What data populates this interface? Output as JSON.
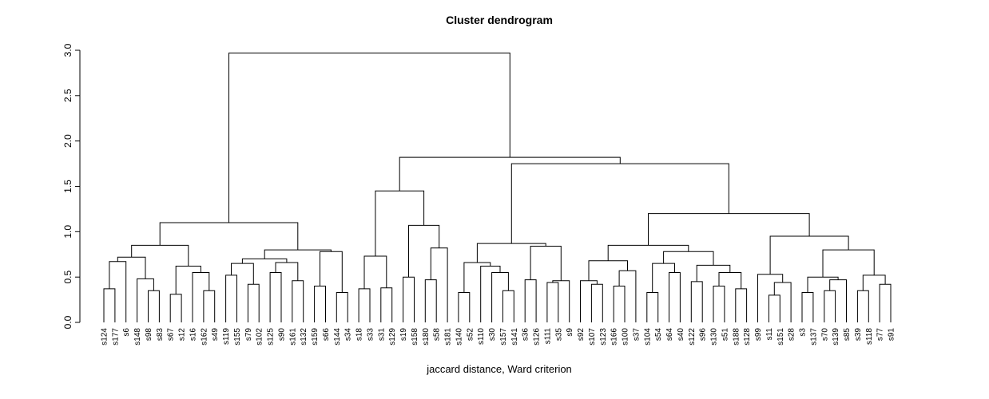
{
  "page": {
    "background": "#FFFFFF"
  },
  "chart_data": {
    "type": "dendrogram",
    "title": "Cluster dendrogram",
    "xlabel": "jaccard distance, Ward criterion",
    "ylabel": "",
    "ylim": [
      0,
      3
    ],
    "yticks": [
      0.0,
      0.5,
      1.0,
      1.5,
      2.0,
      2.5,
      3.0
    ],
    "grid": false,
    "line_color": "#000000",
    "leaf_colors": {
      "red": "#FF0000",
      "cyan": "#00FFFF"
    },
    "leaves": [
      {
        "label": "s124",
        "group": "cyan"
      },
      {
        "label": "s177",
        "group": "cyan"
      },
      {
        "label": "s6",
        "group": "red"
      },
      {
        "label": "s148",
        "group": "cyan"
      },
      {
        "label": "s98",
        "group": "red"
      },
      {
        "label": "s83",
        "group": "red"
      },
      {
        "label": "s67",
        "group": "cyan"
      },
      {
        "label": "s12",
        "group": "red"
      },
      {
        "label": "s16",
        "group": "red"
      },
      {
        "label": "s162",
        "group": "red"
      },
      {
        "label": "s49",
        "group": "red"
      },
      {
        "label": "s119",
        "group": "cyan"
      },
      {
        "label": "s155",
        "group": "red"
      },
      {
        "label": "s79",
        "group": "red"
      },
      {
        "label": "s102",
        "group": "red"
      },
      {
        "label": "s125",
        "group": "cyan"
      },
      {
        "label": "s90",
        "group": "red"
      },
      {
        "label": "s161",
        "group": "red"
      },
      {
        "label": "s132",
        "group": "red"
      },
      {
        "label": "s159",
        "group": "cyan"
      },
      {
        "label": "s66",
        "group": "cyan"
      },
      {
        "label": "s144",
        "group": "red"
      },
      {
        "label": "s34",
        "group": "red"
      },
      {
        "label": "s18",
        "group": "cyan"
      },
      {
        "label": "s33",
        "group": "red"
      },
      {
        "label": "s31",
        "group": "red"
      },
      {
        "label": "s129",
        "group": "cyan"
      },
      {
        "label": "s19",
        "group": "cyan"
      },
      {
        "label": "s158",
        "group": "cyan"
      },
      {
        "label": "s180",
        "group": "cyan"
      },
      {
        "label": "s58",
        "group": "red"
      },
      {
        "label": "s181",
        "group": "cyan"
      },
      {
        "label": "s140",
        "group": "cyan"
      },
      {
        "label": "s52",
        "group": "cyan"
      },
      {
        "label": "s110",
        "group": "cyan"
      },
      {
        "label": "s30",
        "group": "cyan"
      },
      {
        "label": "s157",
        "group": "cyan"
      },
      {
        "label": "s141",
        "group": "cyan"
      },
      {
        "label": "s36",
        "group": "cyan"
      },
      {
        "label": "s126",
        "group": "cyan"
      },
      {
        "label": "s111",
        "group": "red"
      },
      {
        "label": "s35",
        "group": "cyan"
      },
      {
        "label": "s9",
        "group": "cyan"
      },
      {
        "label": "s92",
        "group": "red"
      },
      {
        "label": "s107",
        "group": "cyan"
      },
      {
        "label": "s123",
        "group": "red"
      },
      {
        "label": "s166",
        "group": "red"
      },
      {
        "label": "s100",
        "group": "red"
      },
      {
        "label": "s37",
        "group": "red"
      },
      {
        "label": "s104",
        "group": "cyan"
      },
      {
        "label": "s54",
        "group": "cyan"
      },
      {
        "label": "s64",
        "group": "cyan"
      },
      {
        "label": "s40",
        "group": "red"
      },
      {
        "label": "s122",
        "group": "cyan"
      },
      {
        "label": "s96",
        "group": "red"
      },
      {
        "label": "s130",
        "group": "cyan"
      },
      {
        "label": "s51",
        "group": "red"
      },
      {
        "label": "s188",
        "group": "red"
      },
      {
        "label": "s128",
        "group": "cyan"
      },
      {
        "label": "s99",
        "group": "red"
      },
      {
        "label": "s11",
        "group": "red"
      },
      {
        "label": "s151",
        "group": "red"
      },
      {
        "label": "s28",
        "group": "red"
      },
      {
        "label": "s3",
        "group": "cyan"
      },
      {
        "label": "s137",
        "group": "cyan"
      },
      {
        "label": "s70",
        "group": "cyan"
      },
      {
        "label": "s139",
        "group": "cyan"
      },
      {
        "label": "s85",
        "group": "cyan"
      },
      {
        "label": "s39",
        "group": "red"
      },
      {
        "label": "s118",
        "group": "cyan"
      },
      {
        "label": "s77",
        "group": "cyan"
      },
      {
        "label": "s91",
        "group": "cyan"
      }
    ],
    "tree": {
      "h": 2.97,
      "c": [
        {
          "h": 1.1,
          "c": [
            {
              "h": 0.85,
              "c": [
                {
                  "h": 0.72,
                  "c": [
                    {
                      "h": 0.67,
                      "c": [
                        {
                          "h": 0.37,
                          "c": [
                            0,
                            1
                          ]
                        },
                        2
                      ]
                    },
                    {
                      "h": 0.48,
                      "c": [
                        3,
                        {
                          "h": 0.35,
                          "c": [
                            4,
                            5
                          ]
                        }
                      ]
                    }
                  ]
                },
                {
                  "h": 0.62,
                  "c": [
                    {
                      "h": 0.31,
                      "c": [
                        6,
                        7
                      ]
                    },
                    {
                      "h": 0.55,
                      "c": [
                        8,
                        {
                          "h": 0.35,
                          "c": [
                            9,
                            10
                          ]
                        }
                      ]
                    }
                  ]
                }
              ]
            },
            {
              "h": 0.8,
              "c": [
                {
                  "h": 0.7,
                  "c": [
                    {
                      "h": 0.65,
                      "c": [
                        {
                          "h": 0.52,
                          "c": [
                            11,
                            12
                          ]
                        },
                        {
                          "h": 0.42,
                          "c": [
                            13,
                            14
                          ]
                        }
                      ]
                    },
                    {
                      "h": 0.66,
                      "c": [
                        {
                          "h": 0.55,
                          "c": [
                            15,
                            16
                          ]
                        },
                        {
                          "h": 0.46,
                          "c": [
                            17,
                            18
                          ]
                        }
                      ]
                    }
                  ]
                },
                {
                  "h": 0.78,
                  "c": [
                    {
                      "h": 0.4,
                      "c": [
                        19,
                        20
                      ]
                    },
                    {
                      "h": 0.33,
                      "c": [
                        21,
                        22
                      ]
                    }
                  ]
                }
              ]
            }
          ]
        },
        {
          "h": 1.82,
          "c": [
            {
              "h": 1.45,
              "c": [
                {
                  "h": 0.73,
                  "c": [
                    {
                      "h": 0.37,
                      "c": [
                        23,
                        24
                      ]
                    },
                    {
                      "h": 0.38,
                      "c": [
                        25,
                        26
                      ]
                    }
                  ]
                },
                {
                  "h": 1.07,
                  "c": [
                    {
                      "h": 0.5,
                      "c": [
                        27,
                        28
                      ]
                    },
                    {
                      "h": 0.82,
                      "c": [
                        {
                          "h": 0.47,
                          "c": [
                            29,
                            30
                          ]
                        },
                        31
                      ]
                    }
                  ]
                }
              ]
            },
            {
              "h": 1.75,
              "c": [
                {
                  "h": 0.87,
                  "c": [
                    {
                      "h": 0.66,
                      "c": [
                        {
                          "h": 0.33,
                          "c": [
                            32,
                            33
                          ]
                        },
                        {
                          "h": 0.62,
                          "c": [
                            34,
                            {
                              "h": 0.55,
                              "c": [
                                35,
                                {
                                  "h": 0.35,
                                  "c": [
                                    36,
                                    37
                                  ]
                                }
                              ]
                            }
                          ]
                        }
                      ]
                    },
                    {
                      "h": 0.84,
                      "c": [
                        {
                          "h": 0.47,
                          "c": [
                            38,
                            39
                          ]
                        },
                        {
                          "h": 0.46,
                          "c": [
                            {
                              "h": 0.44,
                              "c": [
                                40,
                                41
                              ]
                            },
                            42
                          ]
                        }
                      ]
                    }
                  ]
                },
                {
                  "h": 1.2,
                  "c": [
                    {
                      "h": 0.85,
                      "c": [
                        {
                          "h": 0.68,
                          "c": [
                            {
                              "h": 0.46,
                              "c": [
                                43,
                                {
                                  "h": 0.42,
                                  "c": [
                                    44,
                                    45
                                  ]
                                }
                              ]
                            },
                            {
                              "h": 0.57,
                              "c": [
                                {
                                  "h": 0.4,
                                  "c": [
                                    46,
                                    47
                                  ]
                                },
                                48
                              ]
                            }
                          ]
                        },
                        {
                          "h": 0.78,
                          "c": [
                            {
                              "h": 0.65,
                              "c": [
                                {
                                  "h": 0.33,
                                  "c": [
                                    49,
                                    50
                                  ]
                                },
                                {
                                  "h": 0.55,
                                  "c": [
                                    51,
                                    52
                                  ]
                                }
                              ]
                            },
                            {
                              "h": 0.63,
                              "c": [
                                {
                                  "h": 0.45,
                                  "c": [
                                    53,
                                    54
                                  ]
                                },
                                {
                                  "h": 0.55,
                                  "c": [
                                    {
                                      "h": 0.4,
                                      "c": [
                                        55,
                                        56
                                      ]
                                    },
                                    {
                                      "h": 0.37,
                                      "c": [
                                        57,
                                        58
                                      ]
                                    }
                                  ]
                                }
                              ]
                            }
                          ]
                        }
                      ]
                    },
                    {
                      "h": 0.95,
                      "c": [
                        {
                          "h": 0.53,
                          "c": [
                            59,
                            {
                              "h": 0.44,
                              "c": [
                                {
                                  "h": 0.3,
                                  "c": [
                                    60,
                                    61
                                  ]
                                },
                                62
                              ]
                            }
                          ]
                        },
                        {
                          "h": 0.8,
                          "c": [
                            {
                              "h": 0.5,
                              "c": [
                                {
                                  "h": 0.33,
                                  "c": [
                                    63,
                                    64
                                  ]
                                },
                                {
                                  "h": 0.47,
                                  "c": [
                                    {
                                      "h": 0.35,
                                      "c": [
                                        65,
                                        66
                                      ]
                                    },
                                    67
                                  ]
                                }
                              ]
                            },
                            {
                              "h": 0.52,
                              "c": [
                                {
                                  "h": 0.35,
                                  "c": [
                                    68,
                                    69
                                  ]
                                },
                                {
                                  "h": 0.42,
                                  "c": [
                                    70,
                                    71
                                  ]
                                }
                              ]
                            }
                          ]
                        }
                      ]
                    }
                  ]
                }
              ]
            }
          ]
        }
      ]
    }
  }
}
